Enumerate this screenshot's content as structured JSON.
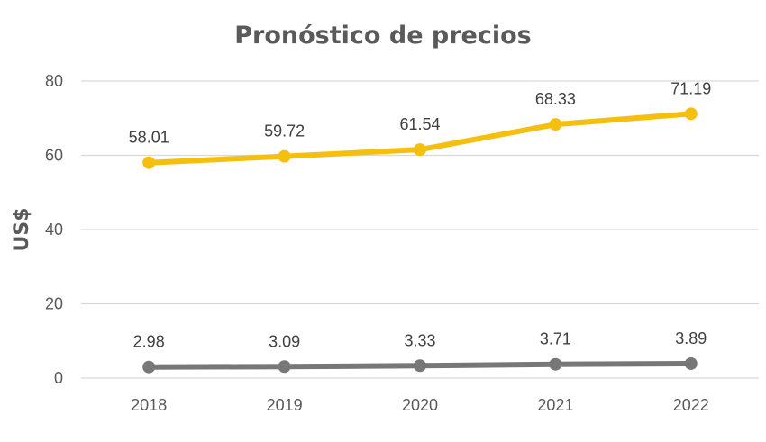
{
  "chart_data": {
    "type": "line",
    "title": "Pronóstico de precios",
    "xlabel": "",
    "ylabel": "US$",
    "ylim": [
      0,
      80
    ],
    "yticks": [
      0,
      20,
      40,
      60,
      80
    ],
    "x": [
      "2018",
      "2019",
      "2020",
      "2021",
      "2022"
    ],
    "grid": true,
    "legend": "none",
    "series": [
      {
        "values": [
          58.01,
          59.72,
          61.54,
          68.33,
          71.19
        ],
        "labels": [
          "58.01",
          "59.72",
          "61.54",
          "68.33",
          "71.19"
        ],
        "color": "#f5bf0f"
      },
      {
        "values": [
          2.98,
          3.09,
          3.33,
          3.71,
          3.89
        ],
        "labels": [
          "2.98",
          "3.09",
          "3.33",
          "3.71",
          "3.89"
        ],
        "color": "#777777"
      }
    ]
  }
}
